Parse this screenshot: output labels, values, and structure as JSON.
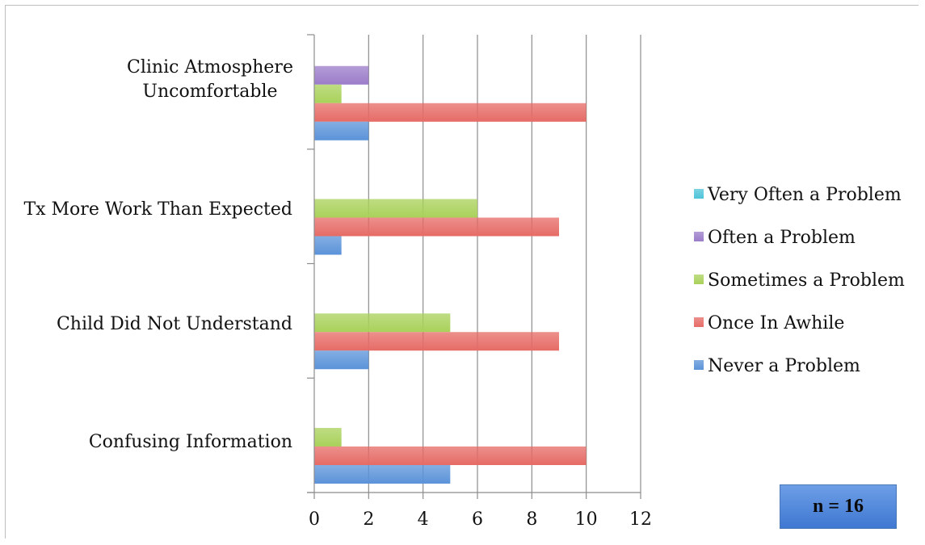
{
  "chart_data": {
    "type": "bar",
    "orientation": "horizontal",
    "categories": [
      [
        "Clinic Atmosphere",
        "Uncomfortable"
      ],
      [
        "Tx More Work Than Expected"
      ],
      [
        "Child Did Not Understand"
      ],
      [
        "Confusing Information"
      ]
    ],
    "series": [
      {
        "name": "Very Often a Problem",
        "color": "#4fc4d9",
        "values": [
          0,
          0,
          0,
          0
        ]
      },
      {
        "name": "Often a Problem",
        "color": "#9b7cc9",
        "values": [
          2,
          0,
          0,
          0
        ]
      },
      {
        "name": "Sometimes a Problem",
        "color": "#a9d15a",
        "values": [
          1,
          6,
          5,
          1
        ]
      },
      {
        "name": "Once In Awhile",
        "color": "#e66b66",
        "values": [
          10,
          9,
          9,
          10
        ]
      },
      {
        "name": "Never a Problem",
        "color": "#5b93d9",
        "values": [
          2,
          1,
          2,
          5
        ]
      }
    ],
    "xlim": [
      0,
      12
    ],
    "xticks": [
      0,
      2,
      4,
      6,
      8,
      10,
      12
    ],
    "grid": true,
    "legend_position": "right"
  },
  "annotation": {
    "text": "n = 16"
  }
}
